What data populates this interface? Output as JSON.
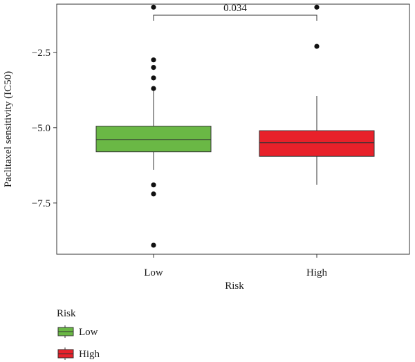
{
  "chart_data": {
    "type": "boxplot",
    "title": "",
    "xlabel": "Risk",
    "ylabel": "Paclitaxel sensitivity (IC50)",
    "ylim": [
      -9.2,
      -0.9
    ],
    "yticks": [
      -2.5,
      -5.0,
      -7.5
    ],
    "ytick_labels": [
      "−2.5",
      "−5.0",
      "−7.5"
    ],
    "categories": [
      "Low",
      "High"
    ],
    "boxes": [
      {
        "name": "Low",
        "color": "#6ab845",
        "whisker_low": -6.4,
        "q1": -5.8,
        "median": -5.4,
        "q3": -4.95,
        "whisker_high": -3.75,
        "outliers": [
          -1.0,
          -2.75,
          -3.0,
          -3.35,
          -3.7,
          -6.9,
          -7.2,
          -8.9
        ]
      },
      {
        "name": "High",
        "color": "#e8212a",
        "whisker_low": -6.9,
        "q1": -5.95,
        "median": -5.5,
        "q3": -5.1,
        "whisker_high": -3.95,
        "outliers": [
          -1.0,
          -2.3
        ]
      }
    ],
    "annotation": {
      "text": "0.034",
      "between": [
        "Low",
        "High"
      ]
    },
    "legend": {
      "title": "Risk",
      "entries": [
        {
          "label": "Low",
          "color": "#6ab845"
        },
        {
          "label": "High",
          "color": "#e8212a"
        }
      ]
    }
  }
}
